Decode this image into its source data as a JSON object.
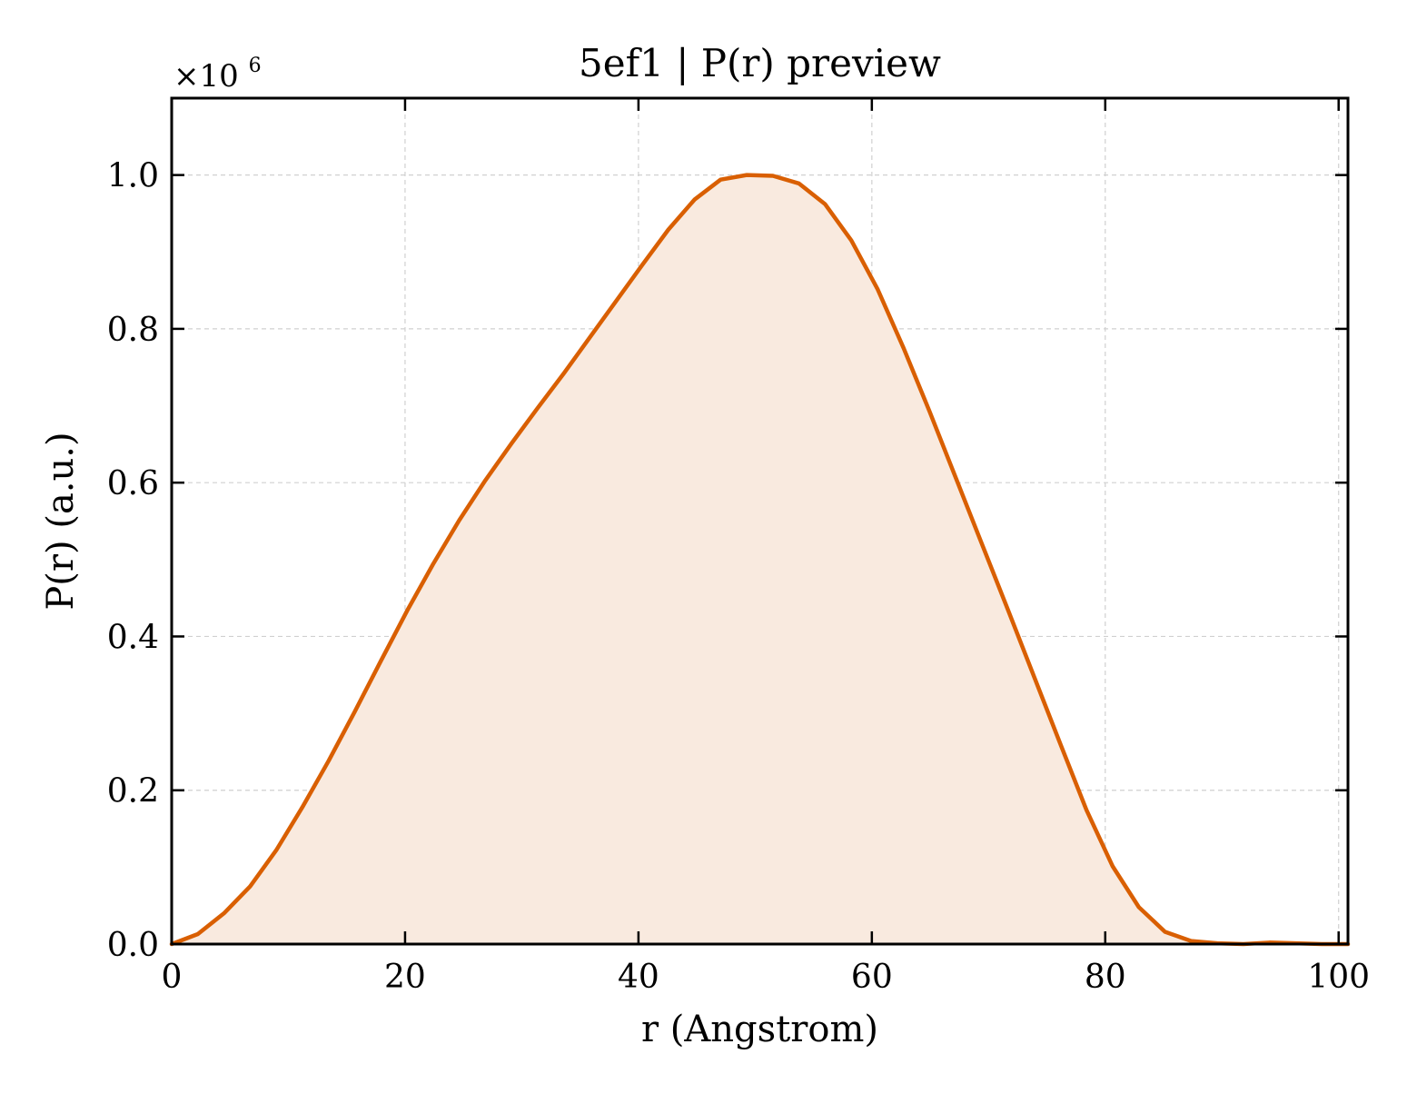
{
  "chart_data": {
    "type": "area",
    "title": "5ef1 | P(r) preview",
    "xlabel": "r (Angstrom)",
    "ylabel": "P(r) (a.u.)",
    "y_scale_label": "×10",
    "y_scale_exponent": "6",
    "xlim": [
      0,
      100.8
    ],
    "ylim": [
      0,
      1.1
    ],
    "x_ticks": [
      "0",
      "20",
      "40",
      "60",
      "80",
      "100"
    ],
    "y_ticks": [
      "0.0",
      "0.2",
      "0.4",
      "0.6",
      "0.8",
      "1.0"
    ],
    "grid": true,
    "legend": "none",
    "colors": {
      "line": "#d95f02",
      "fill": "#f9eadf",
      "grid": "#d0d0d0",
      "frame": "#000000"
    },
    "series": [
      {
        "x": [
          0,
          2.24,
          4.48,
          6.72,
          8.96,
          11.2,
          13.44,
          15.68,
          17.92,
          20.16,
          22.4,
          24.64,
          26.88,
          29.12,
          31.36,
          33.6,
          35.84,
          38.08,
          40.32,
          42.56,
          44.8,
          47.04,
          49.28,
          51.52,
          53.76,
          56.0,
          58.24,
          60.48,
          62.72,
          64.96,
          67.2,
          69.44,
          71.68,
          73.92,
          76.16,
          78.4,
          80.64,
          82.88,
          85.12,
          87.36,
          89.6,
          91.84,
          94.08,
          96.32,
          98.56,
          100.8
        ],
        "values": [
          0.0,
          0.013,
          0.04,
          0.075,
          0.122,
          0.178,
          0.238,
          0.302,
          0.368,
          0.433,
          0.494,
          0.551,
          0.603,
          0.651,
          0.697,
          0.742,
          0.789,
          0.836,
          0.883,
          0.929,
          0.968,
          0.994,
          1.0,
          0.999,
          0.989,
          0.962,
          0.915,
          0.852,
          0.775,
          0.692,
          0.606,
          0.52,
          0.434,
          0.347,
          0.26,
          0.174,
          0.101,
          0.048,
          0.016,
          0.004,
          0.001,
          0.0,
          0.002,
          0.001,
          0.0,
          0.0
        ]
      }
    ]
  }
}
